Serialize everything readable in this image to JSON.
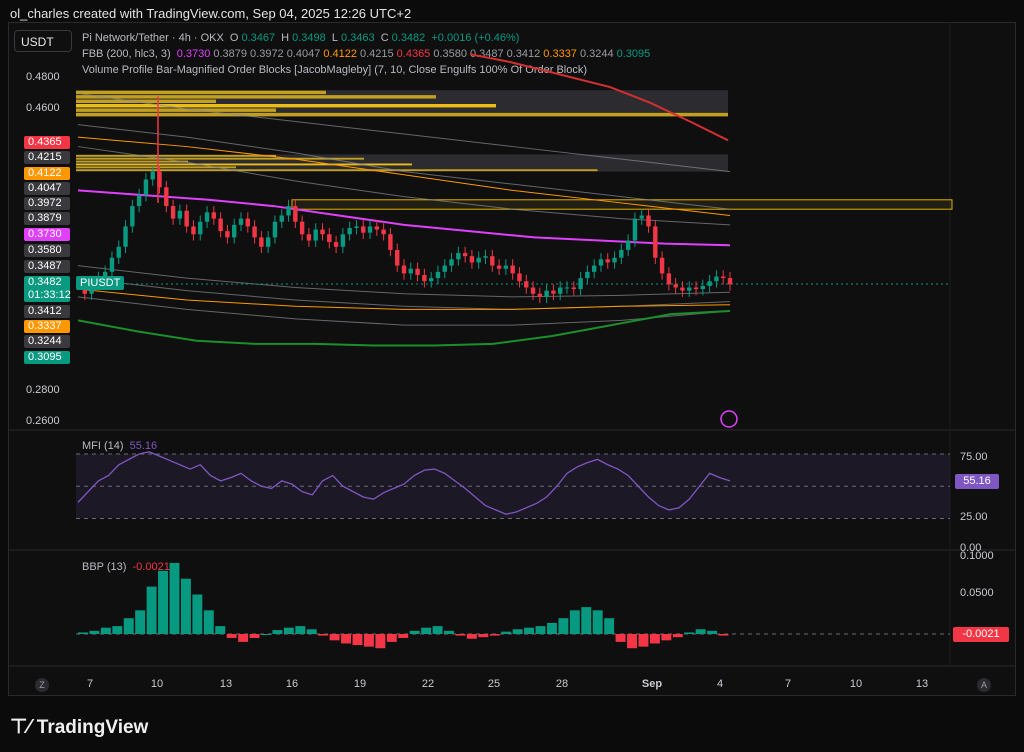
{
  "header": {
    "caption": "ol_charles created with TradingView.com, Sep 04, 2025 12:26 UTC+2"
  },
  "toolbar": {
    "symbol_button": "USDT"
  },
  "legend": {
    "title": "Pi Network/Tether · 4h · OKX",
    "o_label": "O",
    "o": "0.3467",
    "h_label": "H",
    "h": "0.3498",
    "l_label": "L",
    "l": "0.3463",
    "c_label": "C",
    "c": "0.3482",
    "change": "+0.0016 (+0.46%)",
    "fbb_name": "FBB (200, hlc3, 3)",
    "fbb_values": [
      {
        "v": "0.3730",
        "color": "#e040fb"
      },
      {
        "v": "0.3879",
        "color": "#9a9ca4"
      },
      {
        "v": "0.3972",
        "color": "#9a9ca4"
      },
      {
        "v": "0.4047",
        "color": "#9a9ca4"
      },
      {
        "v": "0.4122",
        "color": "#ff9800"
      },
      {
        "v": "0.4215",
        "color": "#9a9ca4"
      },
      {
        "v": "0.4365",
        "color": "#f23645"
      },
      {
        "v": "0.3580",
        "color": "#9a9ca4"
      },
      {
        "v": "0.3487",
        "color": "#9a9ca4"
      },
      {
        "v": "0.3412",
        "color": "#9a9ca4"
      },
      {
        "v": "0.3337",
        "color": "#ff9800"
      },
      {
        "v": "0.3244",
        "color": "#9a9ca4"
      },
      {
        "v": "0.3095",
        "color": "#089981"
      }
    ],
    "vp_name": "Volume Profile Bar-Magnified Order Blocks [JacobMagleby] (7, 10, Close Engulfs 100% Of Order Block)"
  },
  "price_axis": {
    "labels": [
      "0.4800",
      "0.4600",
      "0.2800",
      "0.2600"
    ],
    "tags": [
      {
        "v": "0.4365",
        "bg": "#f23645"
      },
      {
        "v": "0.4215",
        "bg": "#3a3a3e"
      },
      {
        "v": "0.4122",
        "bg": "#ff9800"
      },
      {
        "v": "0.4047",
        "bg": "#3a3a3e"
      },
      {
        "v": "0.3972",
        "bg": "#3a3a3e"
      },
      {
        "v": "0.3879",
        "bg": "#3a3a3e"
      },
      {
        "v": "0.3730",
        "bg": "#e040fb"
      },
      {
        "v": "0.3580",
        "bg": "#3a3a3e"
      },
      {
        "v": "0.3487",
        "bg": "#3a3a3e"
      },
      {
        "v": "0.3412",
        "bg": "#3a3a3e"
      },
      {
        "v": "0.3337",
        "bg": "#ff9800"
      },
      {
        "v": "0.3244",
        "bg": "#3a3a3e"
      },
      {
        "v": "0.3095",
        "bg": "#089981"
      }
    ],
    "last_price": "0.3482",
    "countdown": "01:33:12",
    "symbol_tag": "PIUSDT"
  },
  "mfi": {
    "title": "MFI (14)",
    "value": "55.16",
    "axis": [
      "75.00",
      "25.00",
      "0.00"
    ]
  },
  "bbp": {
    "title": "BBP (13)",
    "value": "-0.0021",
    "axis": [
      "0.1000",
      "0.0500"
    ]
  },
  "time_axis": {
    "labels": [
      "7",
      "10",
      "13",
      "16",
      "19",
      "22",
      "25",
      "28",
      "Sep",
      "4",
      "7",
      "10",
      "13"
    ]
  },
  "buttons": {
    "left": "Z",
    "right": "A"
  },
  "branding": {
    "logo_text": "TradingView"
  },
  "colors": {
    "up": "#089981",
    "down": "#f23645",
    "magenta": "#e040fb",
    "orange": "#ff9800",
    "yellow": "#ffd54f",
    "green": "#1b8f2a",
    "mfi": "#7e57c2"
  },
  "chart_data": {
    "type": "candlestick",
    "symbol": "PIUSDT",
    "timeframe": "4h",
    "ylim": [
      0.255,
      0.49
    ],
    "close_series": [
      0.345,
      0.342,
      0.348,
      0.352,
      0.356,
      0.365,
      0.372,
      0.385,
      0.398,
      0.405,
      0.415,
      0.42,
      0.41,
      0.398,
      0.39,
      0.395,
      0.385,
      0.38,
      0.388,
      0.394,
      0.39,
      0.382,
      0.378,
      0.386,
      0.39,
      0.385,
      0.378,
      0.372,
      0.378,
      0.388,
      0.392,
      0.398,
      0.388,
      0.38,
      0.376,
      0.383,
      0.38,
      0.375,
      0.372,
      0.38,
      0.384,
      0.385,
      0.381,
      0.385,
      0.383,
      0.38,
      0.37,
      0.36,
      0.355,
      0.358,
      0.354,
      0.35,
      0.352,
      0.356,
      0.36,
      0.364,
      0.368,
      0.366,
      0.362,
      0.365,
      0.366,
      0.36,
      0.358,
      0.36,
      0.355,
      0.35,
      0.346,
      0.342,
      0.34,
      0.344,
      0.342,
      0.346,
      0.346,
      0.345,
      0.352,
      0.356,
      0.36,
      0.364,
      0.362,
      0.365,
      0.37,
      0.376,
      0.39,
      0.392,
      0.385,
      0.365,
      0.355,
      0.348,
      0.346,
      0.344,
      0.346,
      0.345,
      0.347,
      0.35,
      0.353,
      0.352,
      0.348
    ],
    "fbb_upper_3": [
      0.49,
      0.485,
      0.475,
      0.465,
      0.455,
      0.446,
      0.44
    ],
    "fbb_basis": [
      0.408,
      0.405,
      0.402,
      0.398,
      0.392,
      0.386,
      0.382,
      0.378,
      0.376,
      0.374,
      0.373
    ],
    "fbb_lower_3": [
      0.325,
      0.318,
      0.312,
      0.31,
      0.31,
      0.309,
      0.309,
      0.31,
      0.315,
      0.322,
      0.329,
      0.331
    ],
    "order_blocks": [
      [
        0.455,
        0.472
      ],
      [
        0.42,
        0.431
      ],
      [
        0.396,
        0.402
      ]
    ],
    "mfi_series": [
      35,
      45,
      55,
      60,
      70,
      75,
      80,
      82,
      78,
      74,
      70,
      66,
      70,
      60,
      55,
      58,
      62,
      55,
      50,
      48,
      55,
      52,
      45,
      42,
      55,
      60,
      50,
      45,
      40,
      38,
      44,
      48,
      52,
      60,
      65,
      66,
      62,
      55,
      48,
      40,
      32,
      28,
      24,
      26,
      30,
      34,
      40,
      50,
      62,
      68,
      72,
      75,
      70,
      66,
      60,
      50,
      40,
      32,
      28,
      30,
      38,
      50,
      62,
      58,
      55
    ],
    "bbp_series": [
      0.002,
      0.004,
      0.008,
      0.01,
      0.02,
      0.03,
      0.06,
      0.08,
      0.09,
      0.07,
      0.05,
      0.03,
      0.01,
      -0.005,
      -0.01,
      -0.005,
      0.0,
      0.005,
      0.008,
      0.01,
      0.006,
      -0.002,
      -0.008,
      -0.012,
      -0.014,
      -0.016,
      -0.018,
      -0.01,
      -0.005,
      0.004,
      0.008,
      0.01,
      0.004,
      -0.002,
      -0.006,
      -0.004,
      -0.002,
      0.003,
      0.006,
      0.008,
      0.01,
      0.014,
      0.02,
      0.03,
      0.034,
      0.03,
      0.02,
      -0.01,
      -0.018,
      -0.016,
      -0.012,
      -0.008,
      -0.004,
      0.002,
      0.006,
      0.004,
      -0.002
    ]
  }
}
